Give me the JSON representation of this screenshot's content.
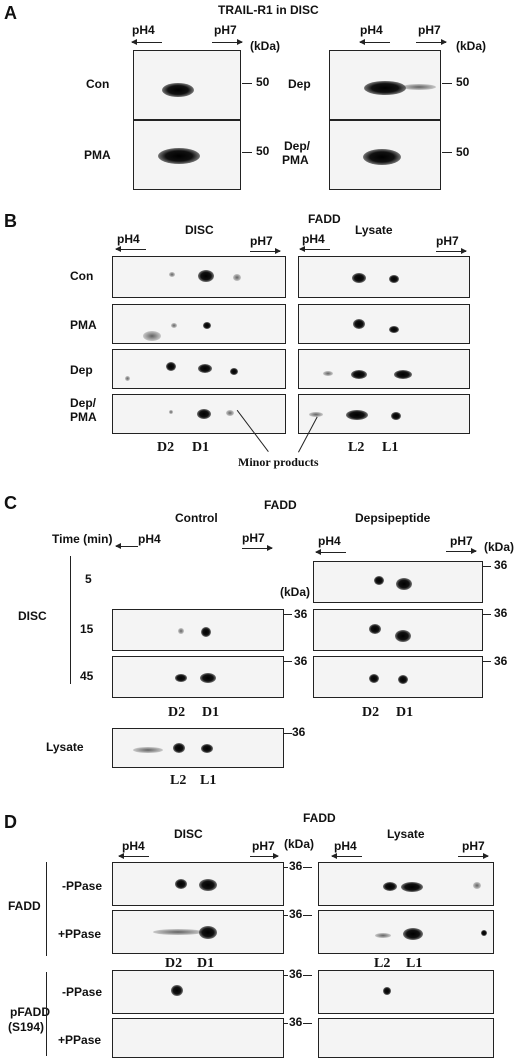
{
  "A": {
    "letter": "A",
    "title": "TRAIL-R1 in DISC",
    "ph_low": "pH4",
    "ph_high": "pH7",
    "kda": "(kDa)",
    "marker": "50",
    "rows": [
      "Con",
      "PMA",
      "Dep",
      "Dep/",
      "PMA"
    ]
  },
  "B": {
    "letter": "B",
    "disc": "DISC",
    "protein": "FADD",
    "lysate": "Lysate",
    "ph_low": "pH4",
    "ph_high": "pH7",
    "rows": [
      "Con",
      "PMA",
      "Dep",
      "Dep/",
      "PMA"
    ],
    "spots_disc": [
      "D2",
      "D1"
    ],
    "spots_lysate": [
      "L2",
      "L1"
    ],
    "minor": "Minor products"
  },
  "C": {
    "letter": "C",
    "protein": "FADD",
    "control": "Control",
    "dep": "Depsipeptide",
    "time_label": "Time (min)",
    "ph_low": "pH4",
    "ph_high": "pH7",
    "kda": "(kDa)",
    "marker": "36",
    "times": [
      "5",
      "15",
      "45"
    ],
    "disc": "DISC",
    "lysate": "Lysate",
    "spots_disc": [
      "D2",
      "D1"
    ],
    "spots_lysate": [
      "L2",
      "L1"
    ]
  },
  "D": {
    "letter": "D",
    "protein": "FADD",
    "disc": "DISC",
    "lysate": "Lysate",
    "ph_low": "pH4",
    "ph_high": "pH7",
    "kda": "(kDa)",
    "marker": "36",
    "row_group_1": "FADD",
    "row_group_2a": "pFADD",
    "row_group_2b": "(S194)",
    "minus": "-PPase",
    "plus": "+PPase",
    "spots_disc": [
      "D2",
      "D1"
    ],
    "spots_lysate": [
      "L2",
      "L1"
    ]
  }
}
